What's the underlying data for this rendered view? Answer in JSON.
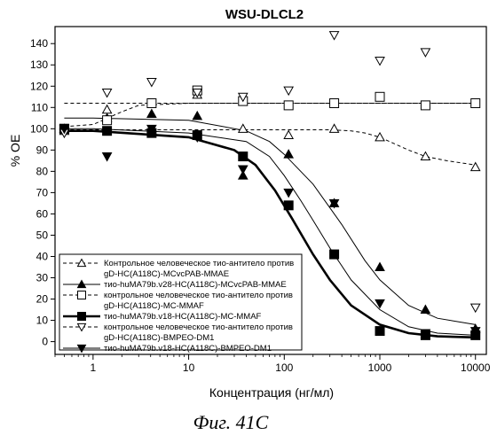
{
  "chart_data": {
    "type": "scatter",
    "title": "WSU-DLCL2",
    "xlabel": "Концентрация (нг/мл)",
    "ylabel": "% OE",
    "xscale": "log",
    "xlim": [
      0.4,
      13000
    ],
    "ylim": [
      -6,
      148
    ],
    "x_ticks": [
      1,
      10,
      100,
      1000,
      10000
    ],
    "x_tick_labels": [
      "1",
      "10",
      "100",
      "1000",
      "10000"
    ],
    "y_ticks": [
      0,
      10,
      20,
      30,
      40,
      50,
      60,
      70,
      80,
      90,
      100,
      110,
      120,
      130,
      140
    ],
    "y_tick_labels": [
      "0",
      "10",
      "20",
      "30",
      "40",
      "50",
      "60",
      "70",
      "80",
      "90",
      "100",
      "110",
      "120",
      "130",
      "140"
    ],
    "grid": false,
    "legend_position": "bottom-left",
    "series": [
      {
        "name": "Контрольное человеческое тио-антитело против gD-HC(A118C)-MCvcPAB-MMAE",
        "legend_lines": [
          "Контрольное человеческое тио-антитело против",
          "gD-HC(A118C)-MCvcPAB-MMAE"
        ],
        "marker": "triangle-up-open",
        "line": "dashed-thin",
        "x": [
          0.5,
          1.4,
          4.1,
          12.3,
          37,
          111,
          333,
          1000,
          3000,
          10000
        ],
        "y": [
          99,
          109,
          99,
          116,
          100,
          97,
          100,
          96,
          87,
          82
        ],
        "fit_x": [
          0.5,
          1,
          10,
          100,
          300,
          500,
          700,
          1000,
          2000,
          3000,
          5000,
          10000
        ],
        "fit_y": [
          99.5,
          99.5,
          99.5,
          99.5,
          99.5,
          99,
          98,
          96,
          90,
          87,
          85,
          83
        ]
      },
      {
        "name": "тио-huMA79b.v28-HC(A118C)-MCvcPAB-MMAE",
        "legend_lines": [
          "тио-huMA79b.v28-HC(A118C)-MCvcPAB-MMAE"
        ],
        "marker": "triangle-up-filled",
        "line": "solid-thin",
        "x": [
          0.5,
          1.4,
          4.1,
          12.3,
          37,
          111,
          333,
          1000,
          3000,
          10000
        ],
        "y": [
          100,
          105,
          107,
          106,
          78,
          88,
          65,
          35,
          15,
          6
        ],
        "fit_x": [
          0.5,
          1,
          10,
          40,
          70,
          100,
          200,
          400,
          700,
          1000,
          2000,
          4000,
          10000
        ],
        "fit_y": [
          105,
          105,
          104,
          99,
          94,
          88,
          74,
          55,
          38,
          29,
          17,
          11,
          8
        ]
      },
      {
        "name": "контрольное человеческое тио-антитело против gD-HC(A118C)-MC-MMAF",
        "legend_lines": [
          "контрольное человеческое тио-антитело против",
          "gD-HC(A118C)-MC-MMAF"
        ],
        "marker": "square-open",
        "line": "dashed-thin",
        "x": [
          0.5,
          1.4,
          4.1,
          12.3,
          37,
          111,
          333,
          1000,
          3000,
          10000
        ],
        "y": [
          100,
          104,
          112,
          118,
          113,
          111,
          112,
          115,
          111,
          112
        ],
        "fit_x": [
          0.5,
          1,
          2,
          3,
          10,
          100,
          10000
        ],
        "fit_y": [
          101,
          102,
          108,
          111,
          112,
          112,
          112
        ]
      },
      {
        "name": "тио-huMA79b.v18-HC(A118C)-MC-MMAF",
        "legend_lines": [
          "тио-huMA79b.v18-HC(A118C)-MC-MMAF"
        ],
        "marker": "square-filled",
        "line": "solid-thick",
        "x": [
          0.5,
          1.4,
          4.1,
          12.3,
          37,
          111,
          333,
          1000,
          3000,
          10000
        ],
        "y": [
          100,
          99,
          98,
          97,
          87,
          64,
          41,
          5,
          3,
          3
        ],
        "fit_x": [
          0.5,
          1,
          10,
          30,
          50,
          80,
          120,
          200,
          300,
          500,
          1000,
          2000,
          4000,
          10000
        ],
        "fit_y": [
          99,
          99,
          96,
          90,
          83,
          71,
          58,
          41,
          29,
          17,
          8,
          4,
          2.5,
          2
        ]
      },
      {
        "name": "контрольное человеческое тио-антитело против gD-HC(A118C)-BMPEO-DM1",
        "legend_lines": [
          "контрольное человеческое тио-антитело против",
          "gD-HC(A118C)-BMPEO-DM1"
        ],
        "marker": "triangle-down-open",
        "line": "dashed-thin",
        "x": [
          0.5,
          1.4,
          4.1,
          12.3,
          37,
          111,
          333,
          1000,
          3000,
          10000
        ],
        "y": [
          98,
          117,
          122,
          117,
          115,
          118,
          144,
          132,
          136,
          16
        ],
        "fit_x": [
          0.5,
          1,
          10,
          100,
          1000,
          10000
        ],
        "fit_y": [
          112,
          112,
          112,
          112,
          112,
          112
        ]
      },
      {
        "name": "тио-huMA79b.v18-HC(A118C)-BMPEO-DM1",
        "legend_lines": [
          "тио-huMA79b.v18-HC(A118C)-BMPEO-DM1"
        ],
        "marker": "triangle-down-filled",
        "line": "solid-thin",
        "x": [
          0.5,
          1.4,
          4.1,
          12.3,
          37,
          111,
          333,
          1000,
          3000,
          10000
        ],
        "y": [
          100,
          87,
          100,
          96,
          81,
          70,
          65,
          18,
          4,
          5
        ],
        "fit_x": [
          0.5,
          1,
          10,
          40,
          70,
          100,
          150,
          200,
          300,
          500,
          1000,
          2000,
          4000,
          10000
        ],
        "fit_y": [
          100,
          100,
          98,
          94,
          87,
          78,
          66,
          57,
          44,
          29,
          15,
          7,
          4,
          3
        ]
      }
    ]
  },
  "caption": "Фиг. 41C"
}
